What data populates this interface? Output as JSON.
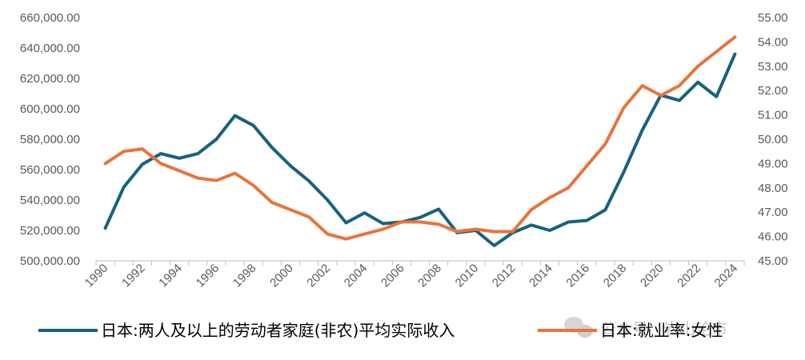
{
  "chart_data": {
    "type": "line",
    "title": "",
    "x": [
      "1990",
      "1991",
      "1992",
      "1993",
      "1994",
      "1995",
      "1996",
      "1997",
      "1998",
      "1999",
      "2000",
      "2001",
      "2002",
      "2003",
      "2004",
      "2005",
      "2006",
      "2007",
      "2008",
      "2009",
      "2010",
      "2011",
      "2012",
      "2013",
      "2014",
      "2015",
      "2016",
      "2017",
      "2018",
      "2019",
      "2020",
      "2021",
      "2022",
      "2023",
      "2024"
    ],
    "x_tick_labels": [
      "1990",
      "1992",
      "1994",
      "1996",
      "1998",
      "2000",
      "2002",
      "2004",
      "2006",
      "2008",
      "2010",
      "2012",
      "2014",
      "2016",
      "2018",
      "2020",
      "2022",
      "2024"
    ],
    "series": [
      {
        "name": "日本:两人及以上的劳动者家庭(非农)平均实际收入",
        "axis": "left",
        "color": "#17627E",
        "values": [
          521500,
          548500,
          563500,
          570500,
          567500,
          570500,
          580000,
          595500,
          589000,
          574500,
          562500,
          552500,
          540000,
          525000,
          531500,
          524500,
          525500,
          528500,
          534000,
          518500,
          520000,
          510000,
          518500,
          523500,
          520000,
          525500,
          526500,
          533500,
          558500,
          586000,
          609000,
          605500,
          617500,
          608000,
          636000
        ]
      },
      {
        "name": "日本:就业率:女性",
        "axis": "right",
        "color": "#E8743B",
        "values": [
          49.0,
          49.5,
          49.6,
          49.0,
          48.7,
          48.4,
          48.3,
          48.6,
          48.1,
          47.4,
          47.1,
          46.8,
          46.1,
          45.9,
          46.1,
          46.3,
          46.6,
          46.6,
          46.5,
          46.2,
          46.3,
          46.2,
          46.2,
          47.1,
          47.6,
          48.0,
          48.9,
          49.8,
          51.3,
          52.2,
          51.8,
          52.2,
          53.0,
          53.6,
          54.2
        ]
      }
    ],
    "y_left": {
      "min": 500000,
      "max": 660000,
      "tick_labels": [
        "500,000.00",
        "520,000.00",
        "540,000.00",
        "560,000.00",
        "580,000.00",
        "600,000.00",
        "620,000.00",
        "640,000.00",
        "660,000.00"
      ]
    },
    "y_right": {
      "min": 45.0,
      "max": 55.0,
      "tick_labels": [
        "45.00",
        "46.00",
        "47.00",
        "48.00",
        "49.00",
        "50.00",
        "51.00",
        "52.00",
        "53.00",
        "54.00",
        "55.00"
      ]
    },
    "xlabel": "",
    "ylabel": "",
    "grid": false,
    "legend_position": "bottom"
  },
  "watermark": "公众号 · 岩山论市"
}
